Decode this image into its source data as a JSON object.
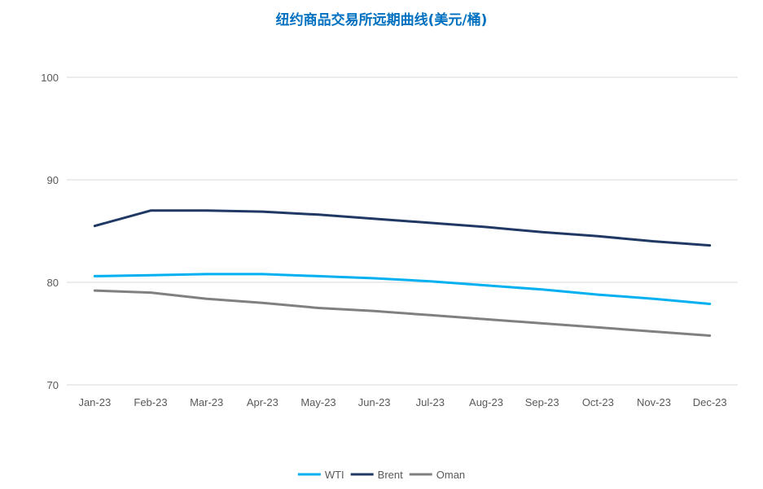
{
  "chart_data": {
    "type": "line",
    "title": "纽约商品交易所远期曲线(美元/桶)",
    "xlabel": "",
    "ylabel": "",
    "categories": [
      "Jan-23",
      "Feb-23",
      "Mar-23",
      "Apr-23",
      "May-23",
      "Jun-23",
      "Jul-23",
      "Aug-23",
      "Sep-23",
      "Oct-23",
      "Nov-23",
      "Dec-23"
    ],
    "y_ticks": [
      "100",
      "90",
      "80",
      "70"
    ],
    "ylim": [
      70,
      100
    ],
    "grid": true,
    "legend_position": "bottom",
    "series": [
      {
        "name": "WTI",
        "color": "#00B0F0",
        "values": [
          80.6,
          80.7,
          80.8,
          80.8,
          80.6,
          80.4,
          80.1,
          79.7,
          79.3,
          78.8,
          78.4,
          77.9
        ]
      },
      {
        "name": "Brent",
        "color": "#1F3864",
        "values": [
          85.5,
          87.0,
          87.0,
          86.9,
          86.6,
          86.2,
          85.8,
          85.4,
          84.9,
          84.5,
          84.0,
          83.6
        ]
      },
      {
        "name": "Oman",
        "color": "#808080",
        "values": [
          79.2,
          79.0,
          78.4,
          78.0,
          77.5,
          77.2,
          76.8,
          76.4,
          76.0,
          75.6,
          75.2,
          74.8
        ]
      }
    ]
  }
}
